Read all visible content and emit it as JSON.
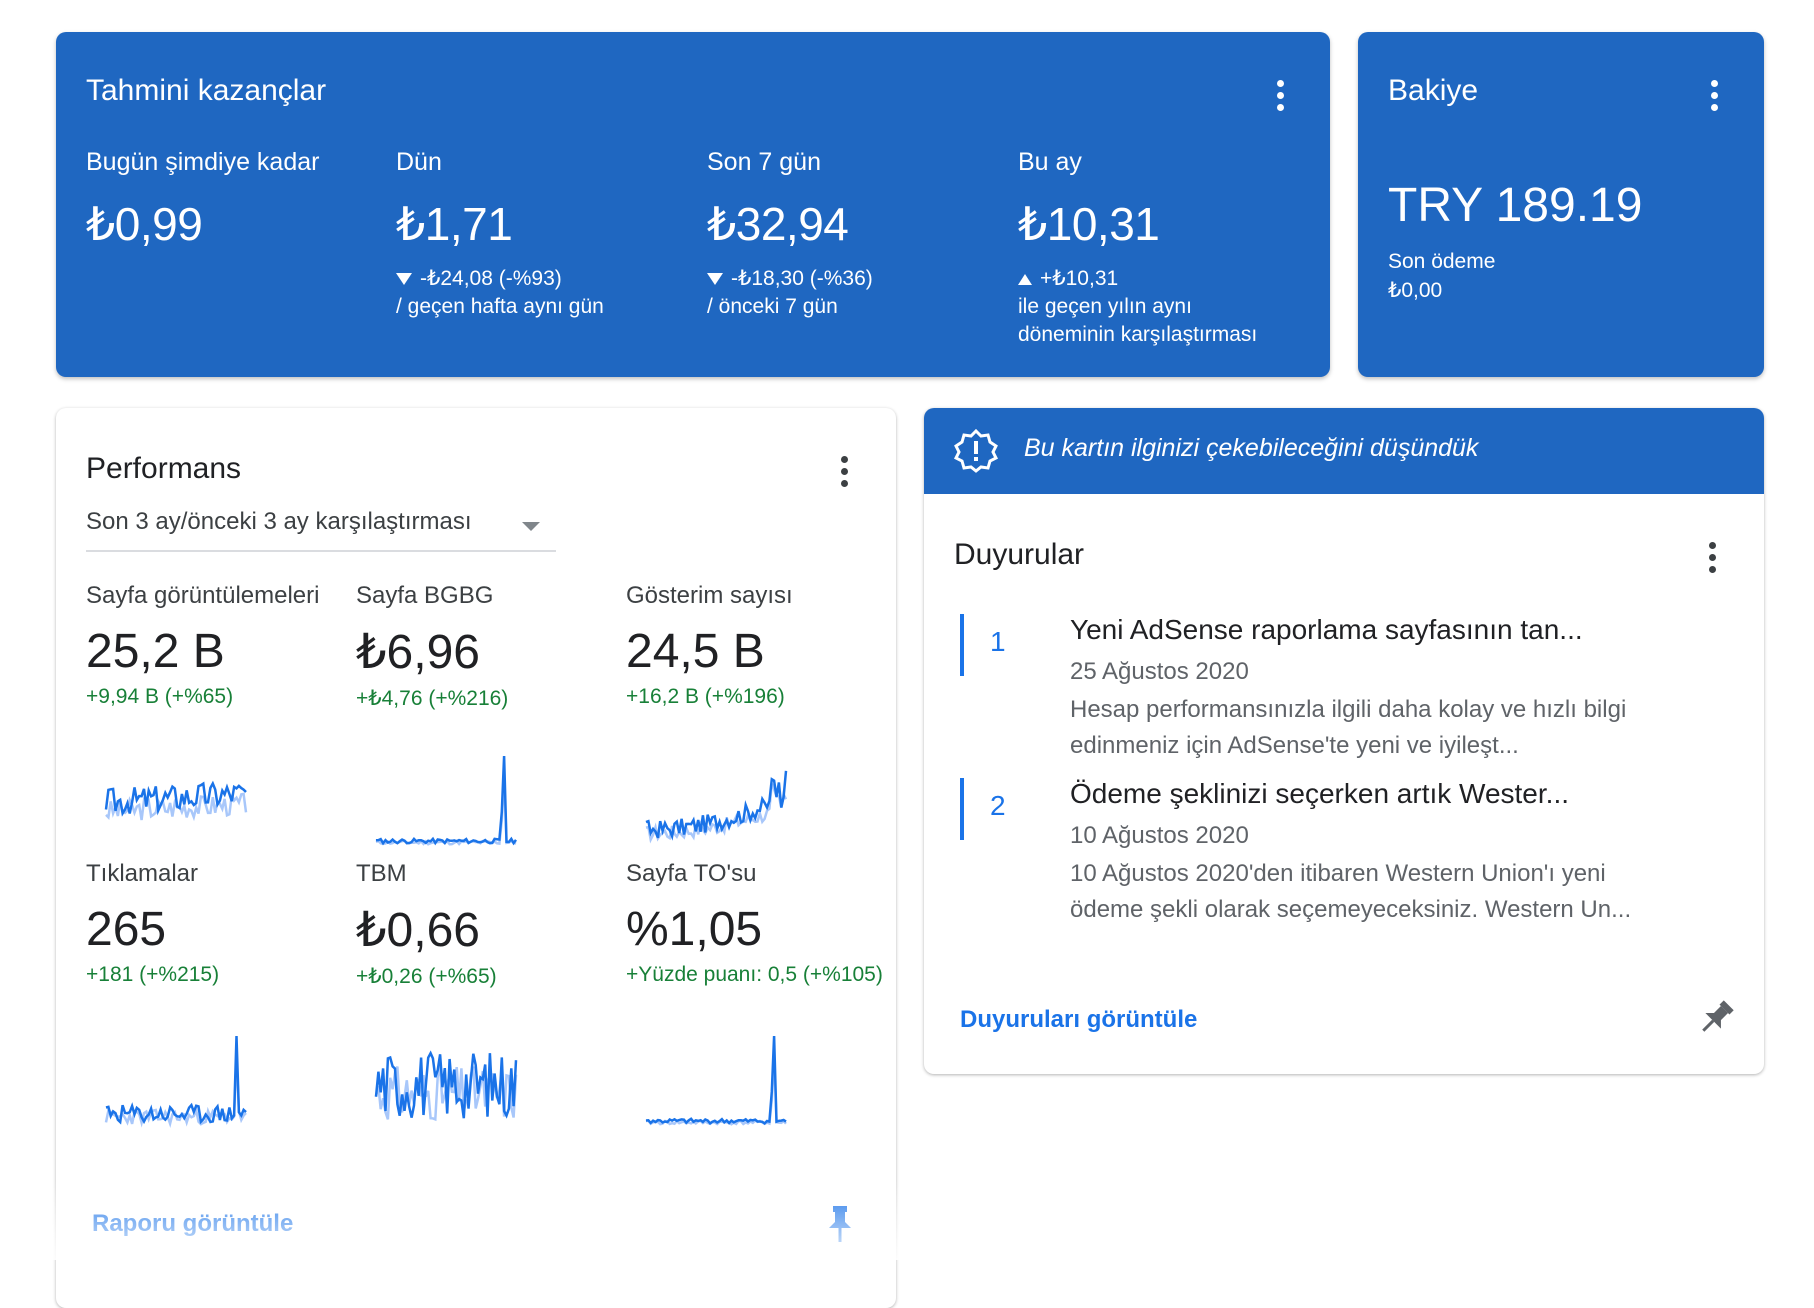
{
  "earnings": {
    "title": "Tahmini kazançlar",
    "columns": [
      {
        "label": "Bugün şimdiye kadar",
        "value": "₺0,99",
        "delta": "",
        "caption": ""
      },
      {
        "label": "Dün",
        "value": "₺1,71",
        "delta": "-₺24,08 (-%93)",
        "caption": "/ geçen hafta aynı gün",
        "trend": "down"
      },
      {
        "label": "Son 7 gün",
        "value": "₺32,94",
        "delta": "-₺18,30 (-%36)",
        "caption": "/ önceki 7 gün",
        "trend": "down"
      },
      {
        "label": "Bu ay",
        "value": "₺10,31",
        "delta": "+₺10,31",
        "caption": "ile geçen yılın aynı",
        "caption2": "döneminin karşılaştırması",
        "trend": "up"
      }
    ]
  },
  "balance": {
    "title": "Bakiye",
    "value": "TRY 189.19",
    "last_payment_label": "Son ödeme",
    "last_payment_value": "₺0,00"
  },
  "performance": {
    "title": "Performans",
    "comparison": "Son 3 ay/önceki 3 ay karşılaştırması",
    "metrics": [
      {
        "label": "Sayfa görüntülemeleri",
        "value": "25,2 B",
        "delta": "+9,94 B (+%65)"
      },
      {
        "label": "Sayfa BGBG",
        "value": "₺6,96",
        "delta": "+₺4,76 (+%216)"
      },
      {
        "label": "Gösterim sayısı",
        "value": "24,5 B",
        "delta": "+16,2 B (+%196)"
      },
      {
        "label": "Tıklamalar",
        "value": "265",
        "delta": "+181 (+%215)"
      },
      {
        "label": "TBM",
        "value": "₺0,66",
        "delta": "+₺0,26 (+%65)"
      },
      {
        "label": "Sayfa TO'su",
        "value": "%1,05",
        "delta": "+Yüzde puanı: 0,5 (+%105)"
      }
    ],
    "view_report": "Raporu görüntüle",
    "colors": {
      "current": "#1a73e8",
      "previous": "#a8c7fa"
    }
  },
  "announcements": {
    "banner": "Bu kartın ilginizi çekebileceğini düşündük",
    "title": "Duyurular",
    "items": [
      {
        "num": "1",
        "title": "Yeni AdSense raporlama sayfasının tan...",
        "date": "25 Ağustos 2020",
        "body1": "Hesap performansınızla ilgili daha kolay ve hızlı bilgi",
        "body2": "edinmeniz için AdSense'te yeni ve iyileşt..."
      },
      {
        "num": "2",
        "title": "Ödeme şeklinizi seçerken artık Wester...",
        "date": "10 Ağustos 2020",
        "body1": "10 Ağustos 2020'den itibaren Western Union'ı yeni",
        "body2": "ödeme şekli olarak seçemeyeceksiniz. Western Un..."
      }
    ],
    "view_link": "Duyuruları görüntüle"
  }
}
